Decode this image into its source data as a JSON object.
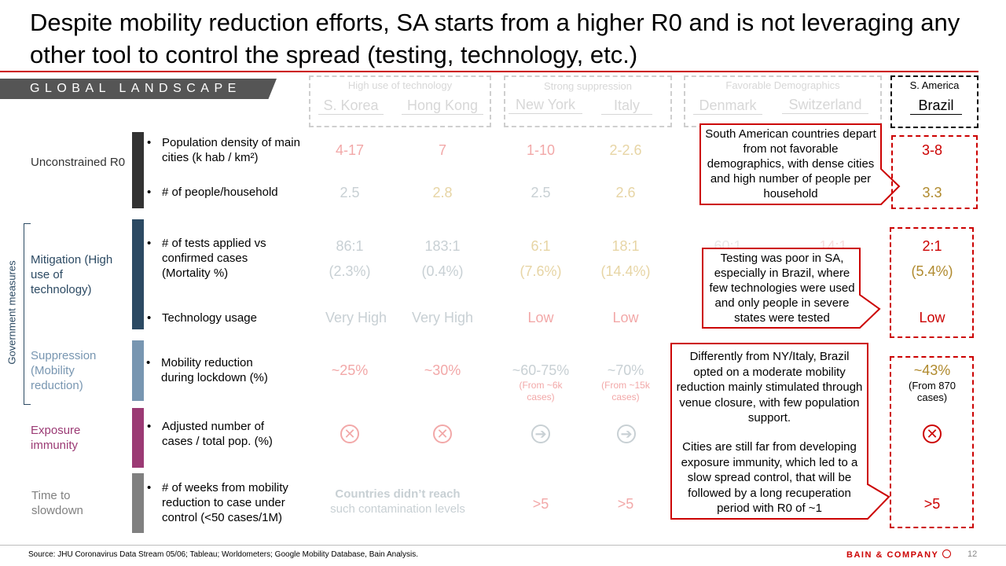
{
  "title": "Despite mobility reduction efforts, SA starts from a higher R0 and is not leveraging any other tool to control the spread (testing, technology, etc.)",
  "section_banner": "GLOBAL LANDSCAPE",
  "side_label": "Government measures",
  "groups": {
    "tech": {
      "label": "High use of technology",
      "countries": [
        "S. Korea",
        "Hong Kong"
      ]
    },
    "suppression": {
      "label": "Strong suppression",
      "countries": [
        "New York",
        "Italy"
      ]
    },
    "demographics": {
      "label": "Favorable Demographics",
      "countries": [
        "Denmark",
        "Switzerland"
      ]
    },
    "sa": {
      "label": "S. America",
      "countries": [
        "Brazil"
      ]
    }
  },
  "row_labels": {
    "r0": "Unconstrained R0",
    "mitigation": "Mitigation (High use of technology)",
    "suppression": "Suppression (Mobility reduction)",
    "exposure": "Exposure immunity",
    "slowdown": "Time to slowdown"
  },
  "metrics": {
    "density": "Population density of main cities (k hab / km²)",
    "household": "# of people/household",
    "tests": "# of tests applied vs confirmed cases (Mortality %)",
    "tech": "Technology usage",
    "mobility": "Mobility reduction during lockdown (%)",
    "cases": "Adjusted number of cases / total pop. (%)",
    "weeks": "# of weeks from mobility reduction to case under control (<50 cases/1M)"
  },
  "values": {
    "skorea": {
      "density": "4-17",
      "household": "2.5",
      "tests": "86:1",
      "mortality": "(2.3%)",
      "tech": "Very High",
      "mobility": "~25%"
    },
    "hongkong": {
      "density": "7",
      "household": "2.8",
      "tests": "183:1",
      "mortality": "(0.4%)",
      "tech": "Very High",
      "mobility": "~30%"
    },
    "newyork": {
      "density": "1-10",
      "household": "2.5",
      "tests": "6:1",
      "mortality": "(7.6%)",
      "tech": "Low",
      "mobility": "~60-75%",
      "mobility_note": "(From ~6k cases)",
      "weeks": ">5"
    },
    "italy": {
      "density": "2-2.6",
      "household": "2.6",
      "tests": "18:1",
      "mortality": "(14.4%)",
      "tech": "Low",
      "mobility": "~70%",
      "mobility_note": "(From ~15k cases)",
      "weeks": ">5"
    },
    "denmark": {
      "tests": "60:1"
    },
    "switzerland": {
      "tests": "14:1"
    },
    "brazil": {
      "density": "3-8",
      "household": "3.3",
      "tests": "2:1",
      "mortality": "(5.4%)",
      "tech": "Low",
      "mobility": "~43%",
      "mobility_note": "(From 870 cases)",
      "weeks": ">5"
    }
  },
  "not_reached": {
    "line1": "Countries didn’t reach",
    "line2": "such contamination levels"
  },
  "callouts": {
    "demographics": "South American countries depart from not favorable demographics, with dense cities and high number of people per household",
    "testing": "Testing was poor in SA, especially in Brazil, where few technologies were used and only people in severe states were tested",
    "mobility_p1": "Differently from NY/Italy, Brazil opted on a moderate mobility reduction mainly stimulated through venue closure, with few population support.",
    "mobility_p2": "Cities are still far from developing exposure immunity, which led to a slow spread control, that will be followed by a long recuperation period with R0 of ~1"
  },
  "icons": {
    "no": "circle-x-icon",
    "arrow": "circle-arrow-icon"
  },
  "footer": {
    "source": "Source: JHU Coronavirus Data Stream 05/06; Tableau; Worldometers; Google Mobility Database, Bain Analysis.",
    "brand": "BAIN & COMPANY",
    "page": "12"
  },
  "colors": {
    "red": "#cc0000",
    "faded_red": "#f2a8a8",
    "faded_gold": "#e7d5a5",
    "gold": "#b08a2e",
    "faded_gray": "#c8d0d4",
    "bar_r0": "#333333",
    "bar_mitigation": "#2c4a63",
    "bar_suppression": "#7896b1",
    "bar_exposure": "#9b3a74",
    "bar_slowdown": "#808080"
  }
}
